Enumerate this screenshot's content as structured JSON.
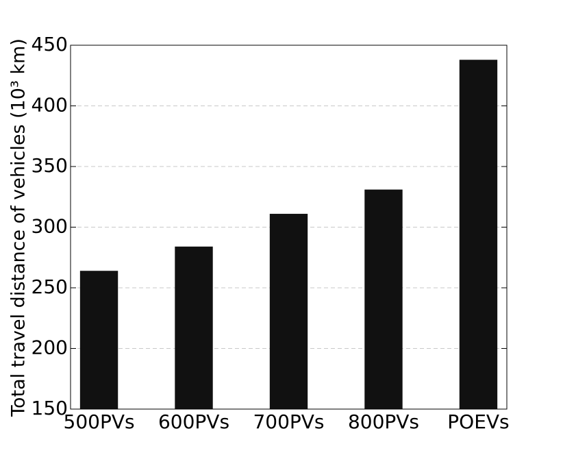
{
  "chart_data": {
    "type": "bar",
    "y_label": "Total travel distance of vehicles (10³ km)",
    "categories": [
      "500PVs",
      "600PVs",
      "700PVs",
      "800PVs",
      "POEVs"
    ],
    "values": [
      264,
      284,
      311,
      331,
      438
    ],
    "color": "#111111",
    "ylim": [
      150,
      450
    ],
    "yticks": [
      150,
      200,
      250,
      300,
      350,
      400,
      450
    ],
    "grid": true
  }
}
